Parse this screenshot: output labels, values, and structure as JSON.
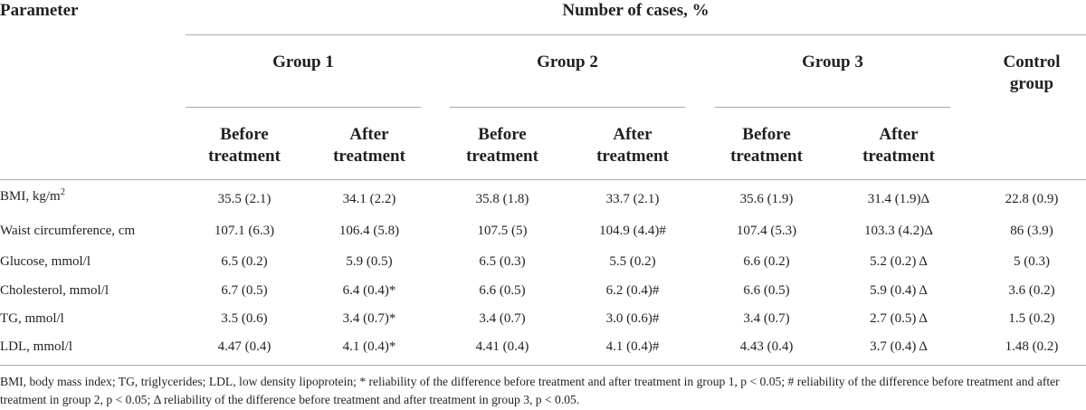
{
  "table": {
    "parameter_header": "Parameter",
    "number_header": "Number of cases, %",
    "groups": [
      "Group 1",
      "Group 2",
      "Group 3"
    ],
    "control": {
      "line1": "Control",
      "line2": "group"
    },
    "sub": {
      "before": {
        "line1": "Before",
        "line2": "treatment"
      },
      "after": {
        "line1": "After",
        "line2": "treatment"
      }
    },
    "rows": [
      {
        "param": "BMI, kg/m",
        "param_sup": "2",
        "values": [
          "35.5 (2.1)",
          "34.1 (2.2)",
          "35.8 (1.8)",
          "33.7 (2.1)",
          "35.6 (1.9)",
          "31.4 (1.9)Δ",
          "22.8 (0.9)"
        ]
      },
      {
        "param": "Waist circumference, cm",
        "param_sup": "",
        "values": [
          "107.1 (6.3)",
          "106.4 (5.8)",
          "107.5 (5)",
          "104.9 (4.4)#",
          "107.4 (5.3)",
          "103.3 (4.2)Δ",
          "86 (3.9)"
        ]
      },
      {
        "param": "Glucose, mmol/l",
        "param_sup": "",
        "values": [
          "6.5 (0.2)",
          "5.9 (0.5)",
          "6.5 (0.3)",
          "5.5 (0.2)",
          "6.6 (0.2)",
          "5.2 (0.2) Δ",
          "5 (0.3)"
        ]
      },
      {
        "param": "Cholesterol, mmol/l",
        "param_sup": "",
        "values": [
          "6.7 (0.5)",
          "6.4 (0.4)*",
          "6.6 (0.5)",
          "6.2 (0.4)#",
          "6.6 (0.5)",
          "5.9 (0.4) Δ",
          "3.6 (0.2)"
        ]
      },
      {
        "param": "TG, mmol/l",
        "param_sup": "",
        "values": [
          "3.5 (0.6)",
          "3.4 (0.7)*",
          "3.4 (0.7)",
          "3.0 (0.6)#",
          "3.4 (0.7)",
          "2.7 (0.5) Δ",
          "1.5 (0.2)"
        ]
      },
      {
        "param": "LDL, mmol/l",
        "param_sup": "",
        "values": [
          "4.47 (0.4)",
          "4.1 (0.4)*",
          "4.41 (0.4)",
          "4.1 (0.4)#",
          "4.43 (0.4)",
          "3.7 (0.4) Δ",
          "1.48 (0.2)"
        ]
      }
    ],
    "footnote": "BMI, body mass index; TG, triglycerides; LDL, low density lipoprotein; * reliability of the difference before treatment and after treatment in group 1, p < 0.05; # reliability of the difference before treatment and after treatment in group 2, p < 0.05; Δ reliability of the difference before treatment and after treatment in group 3, p < 0.05."
  }
}
